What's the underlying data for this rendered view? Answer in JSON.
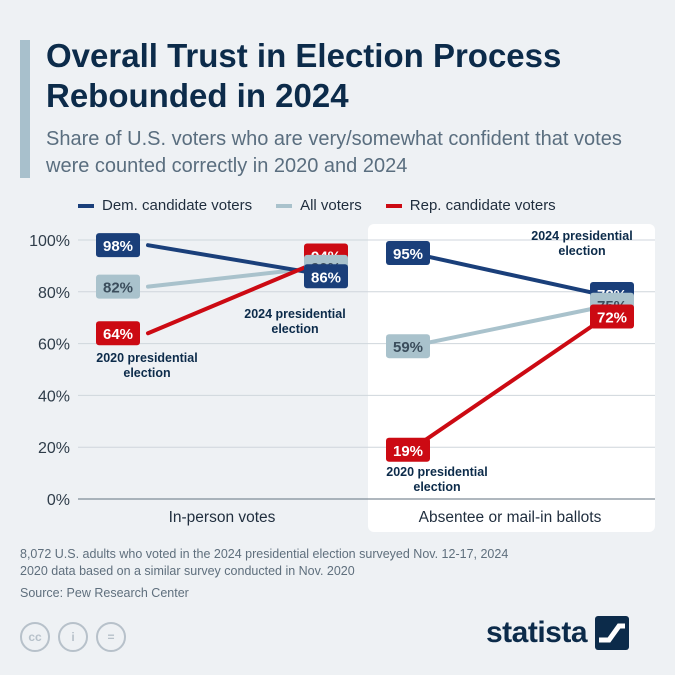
{
  "title": "Overall Trust in Election Process Rebounded in 2024",
  "subtitle": "Share of U.S. voters who are very/somewhat confident that votes were counted correctly in 2020 and 2024",
  "footnote_lines": [
    "8,072 U.S. adults who voted in the 2024 presidential election surveyed Nov. 12-17, 2024",
    "2020 data based on a similar survey conducted in Nov. 2020"
  ],
  "source": "Source: Pew Research Center",
  "brand": "statista",
  "license_icons": [
    "creative-commons-icon",
    "attribution-icon",
    "no-derivatives-icon"
  ],
  "license_icon_glyphs": [
    "cc",
    "i",
    "="
  ],
  "colors": {
    "dem": "#1a3f7a",
    "all": "#a9c2cc",
    "rep": "#cc0a13",
    "panel": "#ffffff",
    "background": "#eef1f4"
  },
  "chart_data": {
    "type": "line",
    "yticks": [
      0,
      20,
      40,
      60,
      80,
      100
    ],
    "ytick_labels": [
      "0%",
      "20%",
      "40%",
      "60%",
      "80%",
      "100%"
    ],
    "ylim": [
      0,
      100
    ],
    "grid": true,
    "legend_position": "top",
    "series": [
      {
        "name": "Dem. candidate voters",
        "key": "dem"
      },
      {
        "name": "All voters",
        "key": "all"
      },
      {
        "name": "Rep. candidate voters",
        "key": "rep"
      }
    ],
    "panels": [
      {
        "category": "In-person votes",
        "values": {
          "dem": [
            98,
            86
          ],
          "all": [
            82,
            90
          ],
          "rep": [
            64,
            94
          ]
        },
        "labels": {
          "dem": [
            "98%",
            "86%"
          ],
          "all": [
            "82%",
            "90%"
          ],
          "rep": [
            "64%",
            "94%"
          ]
        }
      },
      {
        "category": "Absentee or mail-in ballots",
        "values": {
          "dem": [
            95,
            78
          ],
          "all": [
            59,
            75
          ],
          "rep": [
            19,
            72
          ]
        },
        "labels": {
          "dem": [
            "95%",
            "78%"
          ],
          "all": [
            "59%",
            "75%"
          ],
          "rep": [
            "19%",
            "72%"
          ]
        }
      }
    ],
    "annotations": [
      {
        "panel": 0,
        "text": [
          "2020 presidential",
          "election"
        ]
      },
      {
        "panel": 0,
        "text": [
          "2024 presidential",
          "election"
        ]
      },
      {
        "panel": 1,
        "text": [
          "2024 presidential",
          "election"
        ]
      },
      {
        "panel": 1,
        "text": [
          "2020 presidential",
          "election"
        ]
      }
    ]
  }
}
